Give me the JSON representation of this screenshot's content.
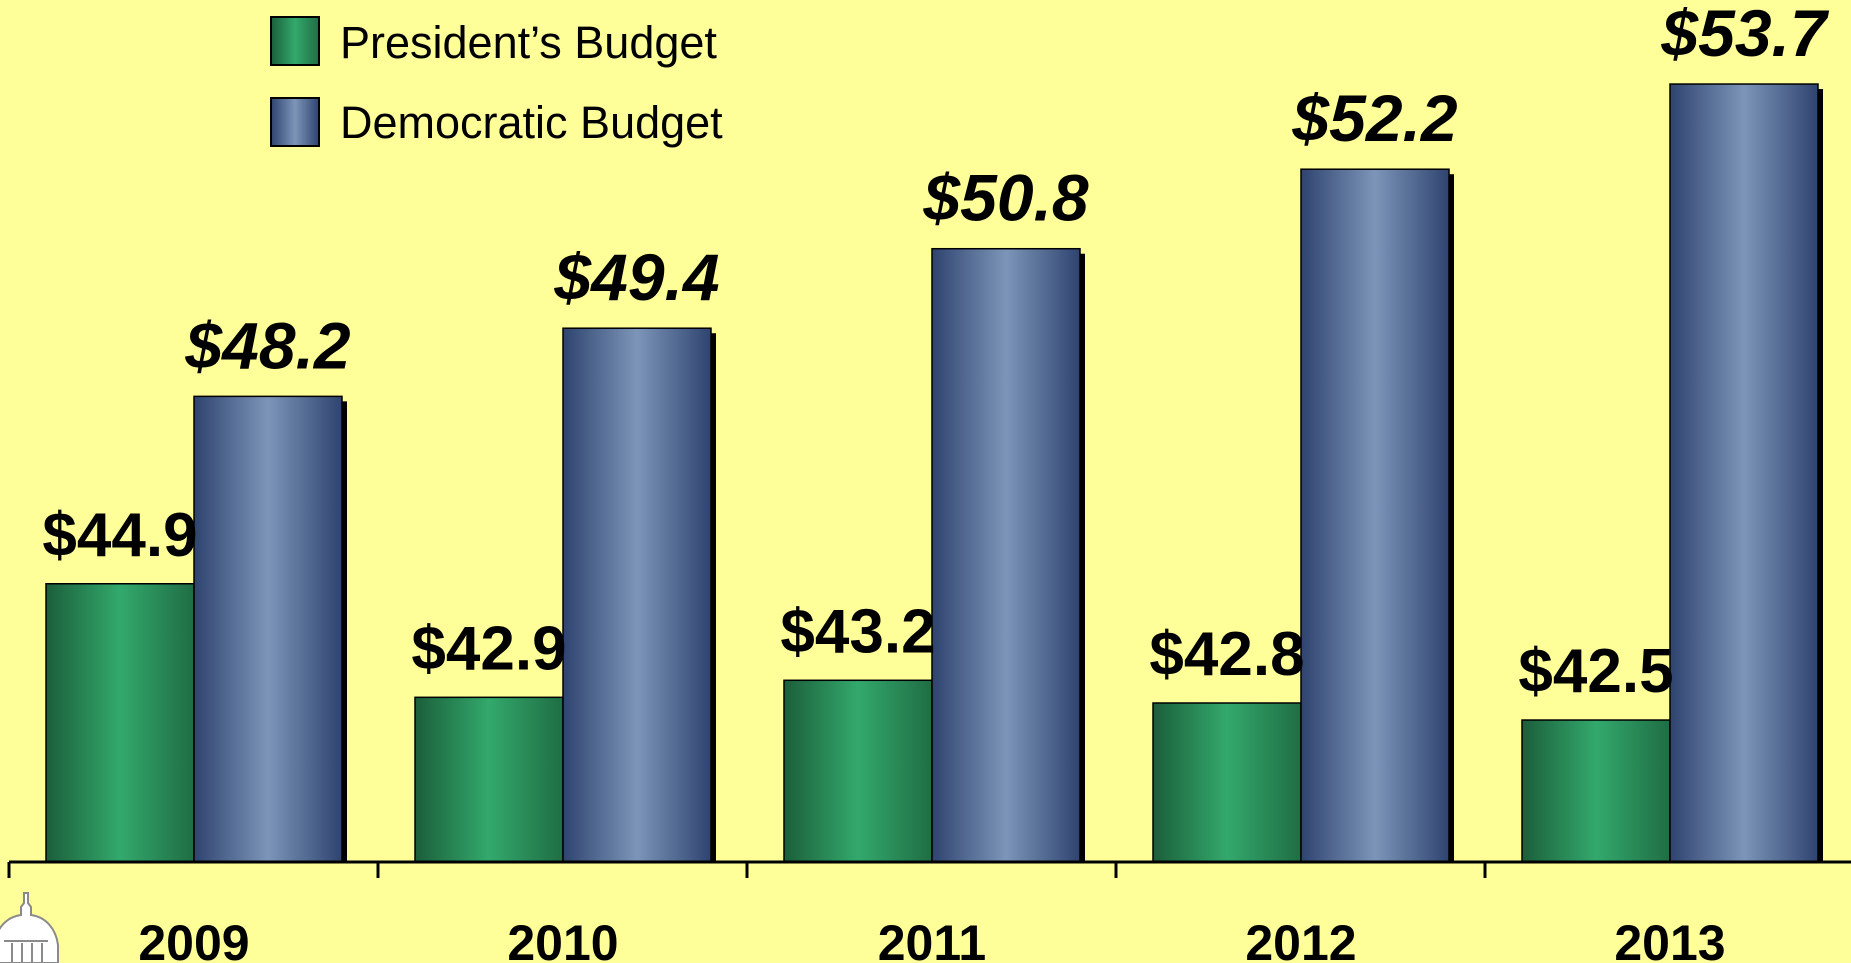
{
  "chart_data": {
    "type": "bar",
    "categories": [
      "2009",
      "2010",
      "2011",
      "2012",
      "2013"
    ],
    "series": [
      {
        "name": "President’s Budget",
        "values": [
          44.9,
          42.9,
          43.2,
          42.8,
          42.5
        ],
        "labels": [
          "$44.9",
          "$42.9",
          "$43.2",
          "$42.8",
          "$42.5"
        ],
        "color": "#2E9A63"
      },
      {
        "name": "Democratic Budget",
        "values": [
          48.2,
          49.4,
          50.8,
          52.2,
          53.7
        ],
        "labels": [
          "$48.2",
          "$49.4",
          "$50.8",
          "$52.2",
          "$53.7"
        ],
        "color": "#7088AC"
      }
    ],
    "title": "",
    "xlabel": "",
    "ylabel": "",
    "ylim": [
      40,
      54
    ],
    "grid": false,
    "legend": "top-left"
  }
}
